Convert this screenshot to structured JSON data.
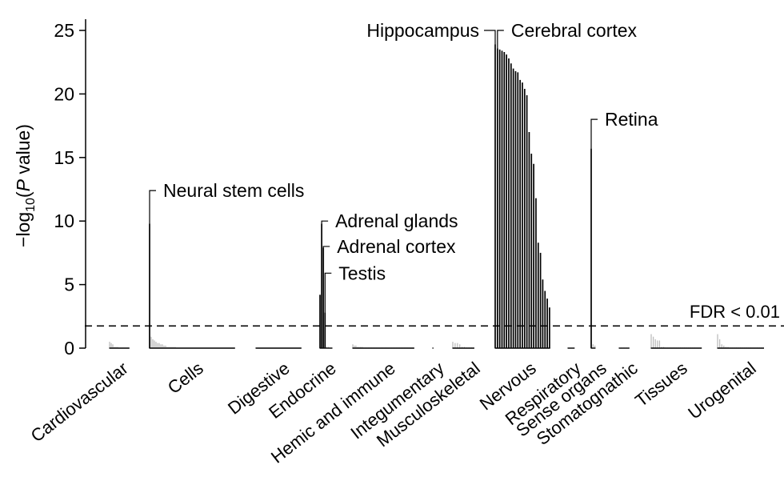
{
  "chart_data": {
    "type": "bar",
    "title": "",
    "ylabel": "-log10(P value)",
    "ylabel_parts": {
      "prefix": "−log",
      "sub": "10",
      "open": "(",
      "p": "P",
      "rest": " value)"
    },
    "ylim": [
      0,
      26
    ],
    "yticks": [
      "0",
      "5",
      "10",
      "15",
      "20",
      "25"
    ],
    "threshold": {
      "value": 1.75,
      "label": "FDR < 0.01"
    },
    "colors": {
      "significant": "#000000",
      "nonsignificant": "#bdbdbd",
      "axis": "#000000"
    },
    "groups": [
      {
        "name": "Cardiovascular",
        "values": [
          0.5,
          0.4,
          0.3,
          0.1,
          0.1,
          0.1,
          0.05,
          0.05,
          0.05,
          0.05,
          0.05,
          0.05,
          0.05
        ]
      },
      {
        "name": "Cells",
        "values": [
          9.8,
          0.9,
          0.7,
          0.6,
          0.5,
          0.4,
          0.4,
          0.3,
          0.3,
          0.2,
          0.2,
          0.1,
          0.1,
          0.1,
          0.1,
          0.1,
          0.1,
          0.05,
          0.05,
          0.05,
          0.05,
          0.05,
          0.05,
          0.05,
          0.05,
          0.05,
          0.05,
          0.05,
          0.05,
          0.05,
          0.05,
          0.05,
          0.05,
          0.05,
          0.05,
          0.05,
          0.05,
          0.05,
          0.05,
          0.05,
          0.05,
          0.05,
          0.05,
          0.05,
          0.05,
          0.05,
          0.05,
          0.05,
          0.05,
          0.05,
          0.05,
          0.05,
          0.05,
          0.05
        ]
      },
      {
        "name": "Digestive",
        "values": [
          0.05,
          0.05,
          0.05,
          0.05,
          0.05,
          0.05,
          0.05,
          0.05,
          0.05,
          0.05,
          0.05,
          0.05,
          0.05,
          0.05,
          0.05,
          0.05,
          0.05,
          0.05,
          0.05,
          0.05,
          0.05,
          0.05,
          0.05,
          0.05,
          0.05,
          0.05,
          0.05,
          0.05,
          0.05
        ]
      },
      {
        "name": "Endocrine",
        "values": [
          4.2,
          9.8,
          7.9,
          2.8,
          0.1,
          0.1,
          0.05,
          0.05
        ]
      },
      {
        "name": "Hemic and immune",
        "values": [
          0.3,
          0.2,
          0.2,
          0.1,
          0.1,
          0.1,
          0.1,
          0.05,
          0.05,
          0.05,
          0.05,
          0.05,
          0.05,
          0.05,
          0.05,
          0.05,
          0.05,
          0.05,
          0.05,
          0.05,
          0.05,
          0.05,
          0.05,
          0.05,
          0.05,
          0.05,
          0.05,
          0.05,
          0.05,
          0.05,
          0.05,
          0.05,
          0.05,
          0.05,
          0.05,
          0.05,
          0.05,
          0.05,
          0.05,
          0.05
        ]
      },
      {
        "name": "Integumentary",
        "values": [
          0.05
        ]
      },
      {
        "name": "Musculoskeletal",
        "values": [
          0.5,
          0.4,
          0.4,
          0.3,
          0.1,
          0.1,
          0.05,
          0.05,
          0.05,
          0.05
        ]
      },
      {
        "name": "Nervous",
        "values": [
          23.9,
          23.6,
          23.5,
          23.4,
          23.3,
          23.1,
          22.8,
          22.4,
          22.0,
          21.8,
          21.7,
          21.1,
          20.9,
          20.4,
          19.9,
          17.0,
          15.3,
          14.5,
          11.8,
          8.3,
          7.5,
          5.4,
          4.5,
          3.9,
          3.2
        ]
      },
      {
        "name": "Respiratory",
        "values": [
          0.05,
          0.05,
          0.05,
          0.05
        ]
      },
      {
        "name": "Sense organs",
        "values": [
          15.7,
          0.3,
          0.2
        ]
      },
      {
        "name": "Stomatognathic",
        "values": [
          0.05,
          0.05,
          0.05,
          0.05,
          0.05
        ]
      },
      {
        "name": "Tissues",
        "values": [
          1.1,
          0.9,
          0.7,
          0.6,
          0.6,
          0.1,
          0.1,
          0.05,
          0.05,
          0.05,
          0.05,
          0.05,
          0.05,
          0.05,
          0.05,
          0.05,
          0.05,
          0.05,
          0.05,
          0.05,
          0.05,
          0.05,
          0.05,
          0.05,
          0.05
        ]
      },
      {
        "name": "Urogenital",
        "values": [
          1.1,
          0.7,
          0.3,
          0.2,
          0.1,
          0.1,
          0.05,
          0.05,
          0.05,
          0.05,
          0.05,
          0.05,
          0.05,
          0.05,
          0.05,
          0.05,
          0.05,
          0.05,
          0.05,
          0.05,
          0.05,
          0.05,
          0.05
        ]
      }
    ],
    "annotations": [
      {
        "label": "Neural stem cells",
        "group": "Cells",
        "index": 0,
        "value": 12.4
      },
      {
        "label": "Adrenal glands",
        "group": "Endocrine",
        "index": 1,
        "value": 10.0
      },
      {
        "label": "Adrenal cortex",
        "group": "Endocrine",
        "index": 2,
        "value": 8.0
      },
      {
        "label": "Testis",
        "group": "Endocrine",
        "index": 3,
        "value": 5.9
      },
      {
        "label": "Hippocampus",
        "group": "Nervous",
        "index": 0,
        "value": 25.0
      },
      {
        "label": "Cerebral cortex",
        "group": "Nervous",
        "index": 1,
        "value": 25.0
      },
      {
        "label": "Retina",
        "group": "Sense organs",
        "index": 0,
        "value": 18.0
      }
    ]
  }
}
